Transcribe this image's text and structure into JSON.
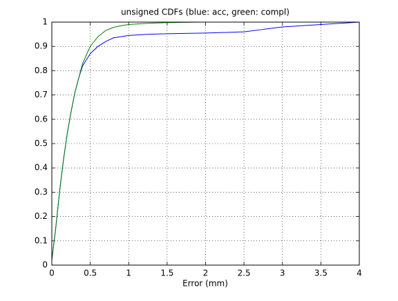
{
  "chart_data": {
    "type": "line",
    "title": "unsigned CDFs (blue: acc, green: compl)",
    "x_label": "Error (mm)",
    "x": [
      0,
      0.05,
      0.1,
      0.15,
      0.2,
      0.25,
      0.3,
      0.35,
      0.4,
      0.5,
      0.6,
      0.7,
      0.8,
      0.9,
      1,
      1.25,
      1.5,
      2,
      2.5,
      2.75,
      3,
      3.5,
      4
    ],
    "series": [
      {
        "color": "#0000ff",
        "values": [
          0.02,
          0.15,
          0.3,
          0.43,
          0.54,
          0.63,
          0.71,
          0.77,
          0.82,
          0.87,
          0.9,
          0.92,
          0.935,
          0.94,
          0.945,
          0.95,
          0.952,
          0.955,
          0.96,
          0.97,
          0.98,
          0.99,
          1
        ]
      },
      {
        "color": "#008000",
        "values": [
          0.02,
          0.15,
          0.3,
          0.43,
          0.54,
          0.63,
          0.71,
          0.77,
          0.83,
          0.9,
          0.94,
          0.965,
          0.978,
          0.985,
          0.99,
          0.995,
          0.998,
          1,
          1,
          1,
          1,
          1,
          1
        ]
      }
    ],
    "xlim": [
      0,
      4
    ],
    "xticks": [
      0,
      0.5,
      1,
      1.5,
      2,
      2.5,
      3,
      3.5,
      4
    ],
    "ylim": [
      0,
      1
    ],
    "yticks": [
      0,
      0.1,
      0.2,
      0.3,
      0.4,
      0.5,
      0.6,
      0.7,
      0.8,
      0.9,
      1
    ],
    "grid": true
  }
}
